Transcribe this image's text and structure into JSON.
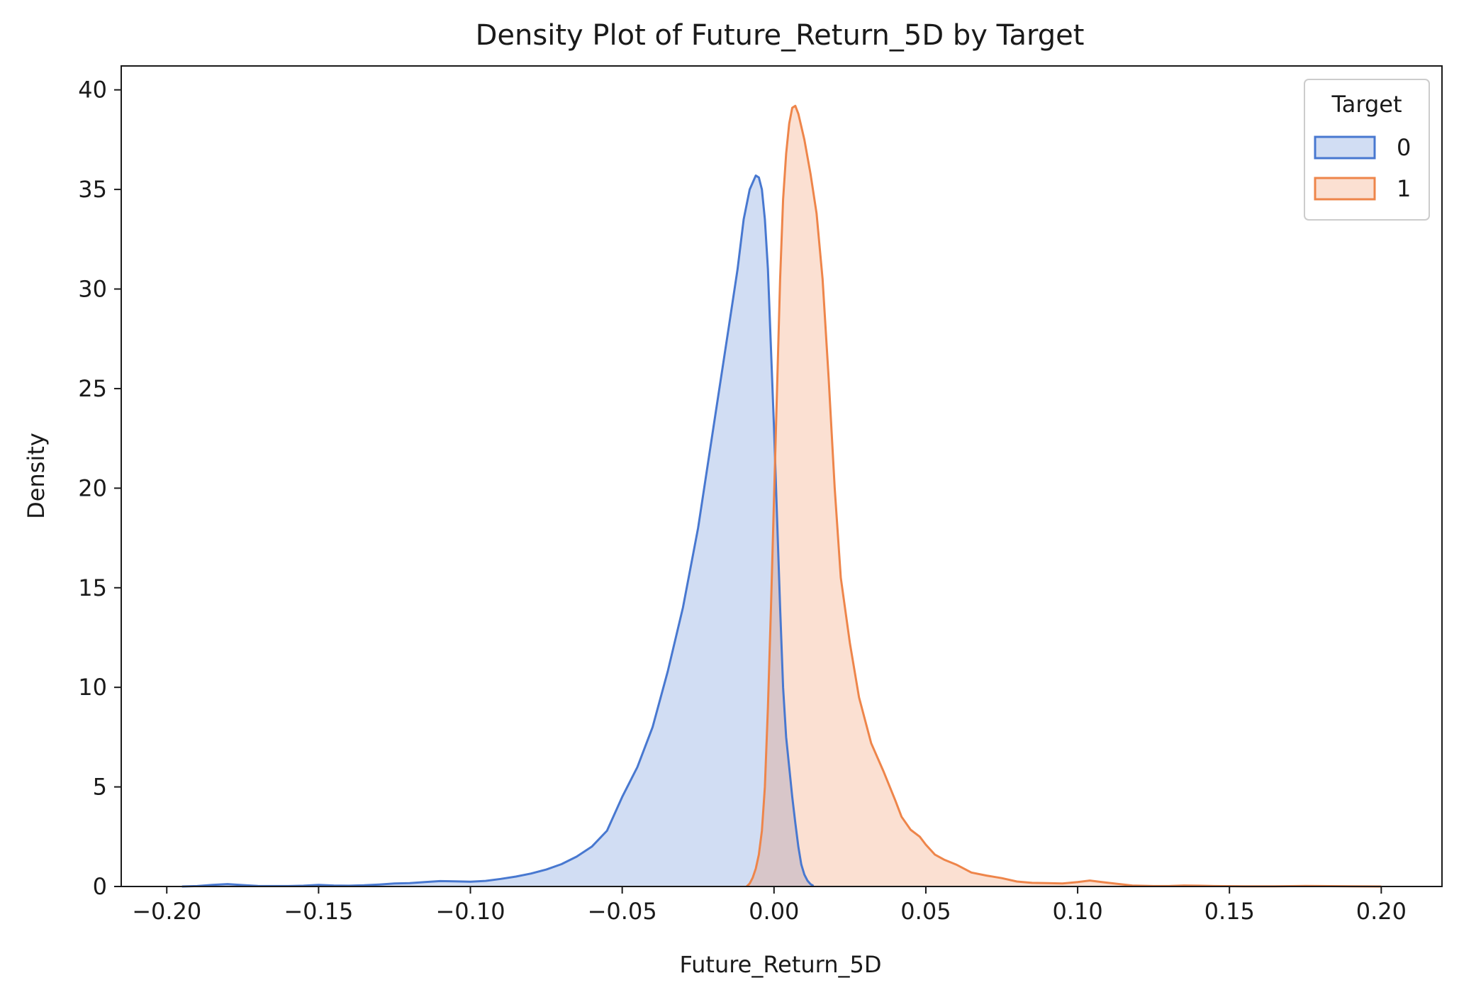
{
  "chart_data": {
    "type": "area",
    "title": "Density Plot of Future_Return_5D by Target",
    "xlabel": "Future_Return_5D",
    "ylabel": "Density",
    "xlim": [
      -0.215,
      0.22
    ],
    "ylim": [
      0,
      41.2
    ],
    "x_ticks": [
      -0.2,
      -0.15,
      -0.1,
      -0.05,
      0.0,
      0.05,
      0.1,
      0.15,
      0.2
    ],
    "x_tick_labels": [
      "−0.20",
      "−0.15",
      "−0.10",
      "−0.05",
      "0.00",
      "0.05",
      "0.10",
      "0.15",
      "0.20"
    ],
    "y_ticks": [
      0,
      5,
      10,
      15,
      20,
      25,
      30,
      35,
      40
    ],
    "y_tick_labels": [
      "0",
      "5",
      "10",
      "15",
      "20",
      "25",
      "30",
      "35",
      "40"
    ],
    "grid": false,
    "legend": {
      "title": "Target",
      "position": "top-right"
    },
    "series": [
      {
        "name": "0",
        "color": "#4878d0",
        "points": [
          [
            -0.195,
            0.0
          ],
          [
            -0.19,
            0.02
          ],
          [
            -0.185,
            0.08
          ],
          [
            -0.18,
            0.12
          ],
          [
            -0.175,
            0.07
          ],
          [
            -0.17,
            0.03
          ],
          [
            -0.165,
            0.02
          ],
          [
            -0.16,
            0.02
          ],
          [
            -0.155,
            0.04
          ],
          [
            -0.15,
            0.08
          ],
          [
            -0.145,
            0.05
          ],
          [
            -0.14,
            0.04
          ],
          [
            -0.135,
            0.06
          ],
          [
            -0.13,
            0.1
          ],
          [
            -0.125,
            0.15
          ],
          [
            -0.12,
            0.17
          ],
          [
            -0.115,
            0.22
          ],
          [
            -0.11,
            0.27
          ],
          [
            -0.105,
            0.26
          ],
          [
            -0.1,
            0.24
          ],
          [
            -0.095,
            0.28
          ],
          [
            -0.09,
            0.38
          ],
          [
            -0.085,
            0.5
          ],
          [
            -0.08,
            0.65
          ],
          [
            -0.075,
            0.85
          ],
          [
            -0.07,
            1.12
          ],
          [
            -0.065,
            1.5
          ],
          [
            -0.06,
            2.0
          ],
          [
            -0.055,
            2.8
          ],
          [
            -0.05,
            4.5
          ],
          [
            -0.045,
            6.0
          ],
          [
            -0.04,
            8.0
          ],
          [
            -0.035,
            10.8
          ],
          [
            -0.03,
            14.0
          ],
          [
            -0.025,
            18.0
          ],
          [
            -0.02,
            23.0
          ],
          [
            -0.015,
            28.0
          ],
          [
            -0.012,
            31.0
          ],
          [
            -0.01,
            33.5
          ],
          [
            -0.008,
            35.0
          ],
          [
            -0.006,
            35.7
          ],
          [
            -0.005,
            35.6
          ],
          [
            -0.004,
            35.0
          ],
          [
            -0.003,
            33.5
          ],
          [
            -0.002,
            31.0
          ],
          [
            -0.001,
            27.0
          ],
          [
            0.0,
            23.0
          ],
          [
            0.001,
            18.5
          ],
          [
            0.002,
            14.0
          ],
          [
            0.003,
            10.0
          ],
          [
            0.004,
            7.5
          ],
          [
            0.005,
            6.0
          ],
          [
            0.006,
            4.5
          ],
          [
            0.007,
            3.2
          ],
          [
            0.008,
            2.0
          ],
          [
            0.009,
            1.1
          ],
          [
            0.01,
            0.6
          ],
          [
            0.011,
            0.3
          ],
          [
            0.012,
            0.12
          ],
          [
            0.013,
            0.03
          ]
        ]
      },
      {
        "name": "1",
        "color": "#ee854a",
        "points": [
          [
            -0.009,
            0.0
          ],
          [
            -0.008,
            0.15
          ],
          [
            -0.007,
            0.45
          ],
          [
            -0.006,
            0.9
          ],
          [
            -0.005,
            1.6
          ],
          [
            -0.004,
            2.8
          ],
          [
            -0.003,
            5.0
          ],
          [
            -0.002,
            9.0
          ],
          [
            -0.001,
            14.0
          ],
          [
            0.0,
            19.5
          ],
          [
            0.001,
            25.0
          ],
          [
            0.002,
            30.5
          ],
          [
            0.003,
            34.5
          ],
          [
            0.004,
            36.8
          ],
          [
            0.005,
            38.3
          ],
          [
            0.006,
            39.1
          ],
          [
            0.007,
            39.2
          ],
          [
            0.008,
            38.8
          ],
          [
            0.01,
            37.5
          ],
          [
            0.012,
            35.8
          ],
          [
            0.014,
            33.8
          ],
          [
            0.016,
            30.5
          ],
          [
            0.018,
            25.5
          ],
          [
            0.02,
            20.0
          ],
          [
            0.022,
            15.5
          ],
          [
            0.025,
            12.2
          ],
          [
            0.028,
            9.5
          ],
          [
            0.032,
            7.2
          ],
          [
            0.036,
            5.8
          ],
          [
            0.04,
            4.3
          ],
          [
            0.042,
            3.5
          ],
          [
            0.045,
            2.85
          ],
          [
            0.048,
            2.5
          ],
          [
            0.05,
            2.1
          ],
          [
            0.053,
            1.6
          ],
          [
            0.056,
            1.35
          ],
          [
            0.06,
            1.1
          ],
          [
            0.065,
            0.7
          ],
          [
            0.07,
            0.55
          ],
          [
            0.075,
            0.42
          ],
          [
            0.08,
            0.25
          ],
          [
            0.085,
            0.18
          ],
          [
            0.09,
            0.17
          ],
          [
            0.095,
            0.15
          ],
          [
            0.1,
            0.22
          ],
          [
            0.104,
            0.3
          ],
          [
            0.108,
            0.22
          ],
          [
            0.112,
            0.15
          ],
          [
            0.118,
            0.05
          ],
          [
            0.125,
            0.02
          ],
          [
            0.13,
            0.02
          ],
          [
            0.135,
            0.05
          ],
          [
            0.14,
            0.04
          ],
          [
            0.145,
            0.02
          ],
          [
            0.155,
            0.01
          ],
          [
            0.165,
            0.01
          ],
          [
            0.175,
            0.03
          ],
          [
            0.18,
            0.02
          ],
          [
            0.19,
            0.01
          ],
          [
            0.2,
            0.0
          ]
        ]
      }
    ]
  }
}
